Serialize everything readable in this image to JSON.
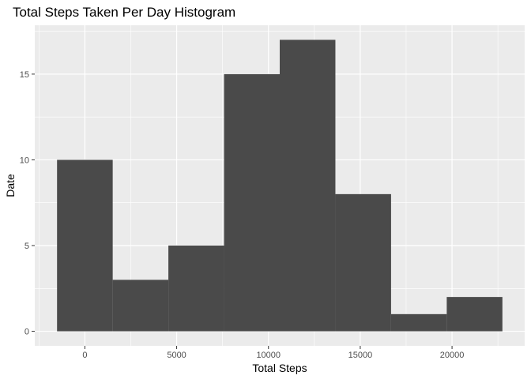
{
  "chart_data": {
    "type": "bar",
    "subtype": "histogram",
    "title": "Total Steps Taken Per Day Histogram",
    "xlabel": "Total Steps",
    "ylabel": "Date",
    "bin_width": 3032.5,
    "bins": [
      {
        "x_start": -1516.25,
        "x_end": 1516.25,
        "count": 10
      },
      {
        "x_start": 1516.25,
        "x_end": 4548.75,
        "count": 3
      },
      {
        "x_start": 4548.75,
        "x_end": 7581.25,
        "count": 5
      },
      {
        "x_start": 7581.25,
        "x_end": 10613.75,
        "count": 15
      },
      {
        "x_start": 10613.75,
        "x_end": 13646.25,
        "count": 17
      },
      {
        "x_start": 13646.25,
        "x_end": 16678.75,
        "count": 8
      },
      {
        "x_start": 16678.75,
        "x_end": 19711.25,
        "count": 1
      },
      {
        "x_start": 19711.25,
        "x_end": 22743.75,
        "count": 2
      }
    ],
    "xlim": [
      -2729.3,
      23956.8
    ],
    "ylim": [
      -0.85,
      17.85
    ],
    "x_ticks": [
      0,
      5000,
      10000,
      15000,
      20000
    ],
    "x_tick_labels": [
      "0",
      "5000",
      "10000",
      "15000",
      "20000"
    ],
    "y_ticks": [
      0,
      5,
      10,
      15
    ],
    "y_tick_labels": [
      "0",
      "5",
      "10",
      "15"
    ],
    "grid": true,
    "legend": "none",
    "colors": {
      "panel_background": "#ebebeb",
      "gridline": "#ffffff",
      "bar_fill": "#4a4a4a",
      "tick_text": "#4d4d4d",
      "tick_mark": "#333333"
    }
  }
}
